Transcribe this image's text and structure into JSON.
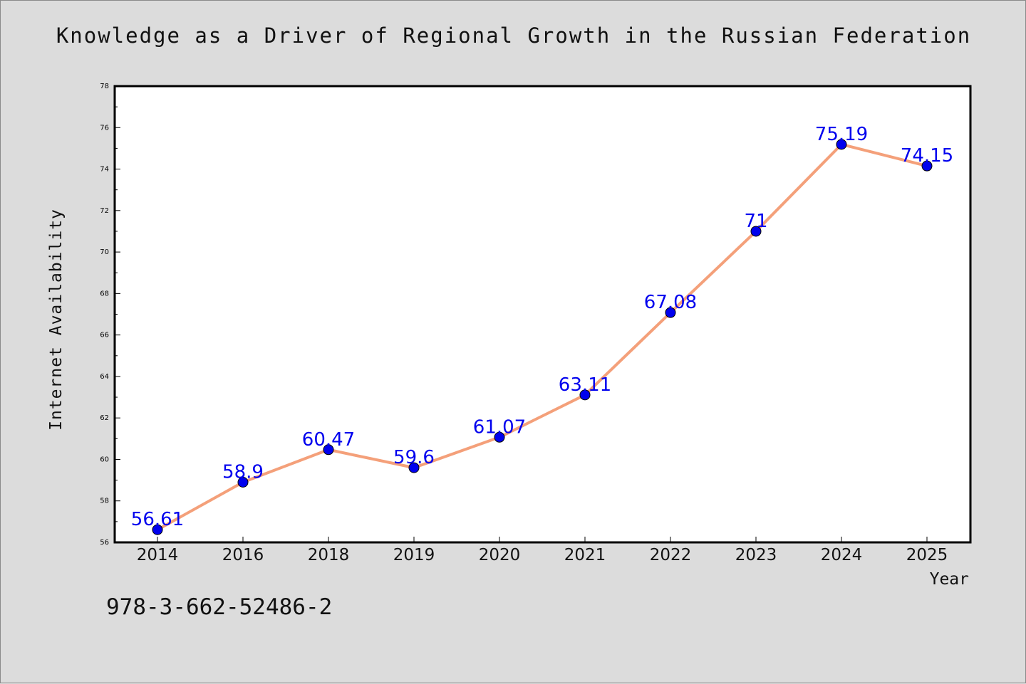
{
  "chart_data": {
    "type": "line",
    "title": "Knowledge as a Driver of Regional Growth in the Russian Federation",
    "xlabel": "Year",
    "ylabel": "Internet Availability",
    "categories": [
      "2014",
      "2016",
      "2018",
      "2019",
      "2020",
      "2021",
      "2022",
      "2023",
      "2024",
      "2025"
    ],
    "values": [
      56.61,
      58.9,
      60.47,
      59.6,
      61.07,
      63.11,
      67.08,
      71,
      75.19,
      74.15
    ],
    "data_labels": [
      "56.61",
      "58.9",
      "60.47",
      "59.6",
      "61.07",
      "63.11",
      "67.08",
      "71",
      "75.19",
      "74.15"
    ],
    "ylim": [
      56,
      78
    ],
    "yticks": [
      56,
      58,
      60,
      62,
      64,
      66,
      68,
      70,
      72,
      74,
      76,
      78
    ],
    "grid": false,
    "legend": "none",
    "line_color": "#f4a07a",
    "marker_color": "#0000ee",
    "label_color": "#0000ee"
  },
  "footer": {
    "isbn": "978-3-662-52486-2"
  }
}
